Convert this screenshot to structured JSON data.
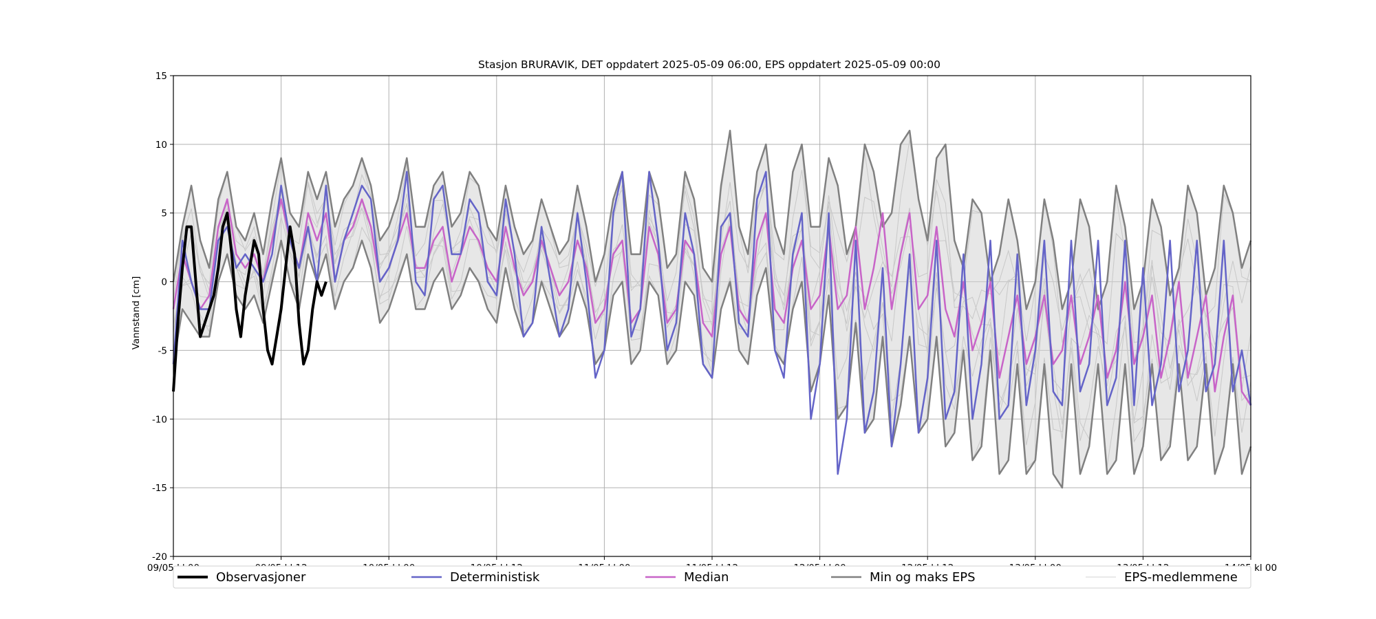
{
  "chart_data": {
    "type": "line",
    "title": "Stasjon BRURAVIK, DET oppdatert 2025-05-09 06:00, EPS oppdatert 2025-05-09 00:00",
    "ylabel": "Vannstand [cm]",
    "xlabel": "",
    "x_unit": "hours since 09/05 kl 00",
    "xlim": [
      0,
      120
    ],
    "ylim": [
      -20,
      15
    ],
    "yticks": [
      -20,
      -15,
      -10,
      -5,
      0,
      5,
      10,
      15
    ],
    "xticks": [
      {
        "x": 0,
        "label": "09/05 kl 00"
      },
      {
        "x": 12,
        "label": "09/05 kl 12"
      },
      {
        "x": 24,
        "label": "10/05 kl 00"
      },
      {
        "x": 36,
        "label": "10/05 kl 12"
      },
      {
        "x": 48,
        "label": "11/05 kl 00"
      },
      {
        "x": 60,
        "label": "11/05 kl 12"
      },
      {
        "x": 72,
        "label": "12/05 kl 00"
      },
      {
        "x": 84,
        "label": "12/05 kl 12"
      },
      {
        "x": 96,
        "label": "13/05 kl 00"
      },
      {
        "x": 108,
        "label": "13/05 kl 12"
      },
      {
        "x": 120,
        "label": "14/05 kl 00"
      }
    ],
    "grid": true,
    "legend_position": "bottom",
    "series": [
      {
        "name": "Observasjoner",
        "color": "#000000",
        "x": [
          0,
          0.5,
          1,
          1.5,
          2,
          2.5,
          3,
          3.5,
          4,
          4.5,
          5,
          5.5,
          6,
          6.5,
          7,
          7.5,
          8,
          8.5,
          9,
          9.5,
          10,
          10.5,
          11,
          11.5,
          12,
          12.5,
          13,
          13.5,
          14,
          14.5,
          15,
          15.5,
          16,
          16.5,
          17
        ],
        "y": [
          -8,
          -3,
          1,
          4,
          4,
          0,
          -4,
          -3,
          -2,
          -1,
          1,
          4,
          5,
          2,
          -2,
          -4,
          -1,
          1,
          3,
          2,
          -2,
          -5,
          -6,
          -4,
          -2,
          1,
          4,
          2,
          -3,
          -6,
          -5,
          -2,
          0,
          -1,
          0
        ]
      },
      {
        "name": "Deterministisk",
        "color": "#6464c8",
        "x": [
          0,
          1,
          2,
          3,
          4,
          5,
          6,
          7,
          8,
          9,
          10,
          11,
          12,
          13,
          14,
          15,
          16,
          17,
          18,
          19,
          20,
          21,
          22,
          23,
          24,
          25,
          26,
          27,
          28,
          29,
          30,
          31,
          32,
          33,
          34,
          35,
          36,
          37,
          38,
          39,
          40,
          41,
          42,
          43,
          44,
          45,
          46,
          47,
          48,
          49,
          50,
          51,
          52,
          53,
          54,
          55,
          56,
          57,
          58,
          59,
          60,
          61,
          62,
          63,
          64,
          65,
          66,
          67,
          68,
          69,
          70,
          71,
          72,
          73,
          74,
          75,
          76,
          77,
          78,
          79,
          80,
          81,
          82,
          83,
          84,
          85,
          86,
          87,
          88,
          89,
          90,
          91,
          92,
          93,
          94,
          95,
          96,
          97,
          98,
          99,
          100,
          101,
          102,
          103,
          104,
          105,
          106,
          107,
          108,
          109,
          110,
          111,
          112,
          113,
          114,
          115,
          116,
          117,
          118,
          119,
          120
        ],
        "y": [
          -6,
          3,
          0,
          -2,
          -2,
          3,
          4,
          1,
          2,
          1,
          0,
          2,
          7,
          3,
          1,
          4,
          0,
          7,
          0,
          3,
          5,
          7,
          6,
          0,
          1,
          3,
          8,
          0,
          -1,
          6,
          7,
          2,
          2,
          6,
          5,
          0,
          -1,
          6,
          2,
          -4,
          -3,
          4,
          0,
          -4,
          -2,
          5,
          0,
          -7,
          -5,
          5,
          8,
          -4,
          -2,
          8,
          3,
          -5,
          -3,
          5,
          2,
          -6,
          -7,
          4,
          5,
          -3,
          -4,
          6,
          8,
          -5,
          -7,
          2,
          5,
          -10,
          -6,
          5,
          -14,
          -10,
          3,
          -11,
          -8,
          1,
          -12,
          -6,
          2,
          -11,
          -7,
          3,
          -10,
          -8,
          2,
          -10,
          -6,
          3,
          -10,
          -9,
          2,
          -9,
          -5,
          3,
          -8,
          -9,
          3,
          -8,
          -6,
          3,
          -9,
          -7,
          3,
          -9,
          1,
          -9,
          -6,
          3,
          -8,
          -5,
          3,
          -8,
          -6,
          3,
          -8,
          -5,
          -9
        ]
      },
      {
        "name": "Median",
        "color": "#c864c8",
        "x": [
          0,
          1,
          2,
          3,
          4,
          5,
          6,
          7,
          8,
          9,
          10,
          11,
          12,
          13,
          14,
          15,
          16,
          17,
          18,
          19,
          20,
          21,
          22,
          23,
          24,
          25,
          26,
          27,
          28,
          29,
          30,
          31,
          32,
          33,
          34,
          35,
          36,
          37,
          38,
          39,
          40,
          41,
          42,
          43,
          44,
          45,
          46,
          47,
          48,
          49,
          50,
          51,
          52,
          53,
          54,
          55,
          56,
          57,
          58,
          59,
          60,
          61,
          62,
          63,
          64,
          65,
          66,
          67,
          68,
          69,
          70,
          71,
          72,
          73,
          74,
          75,
          76,
          77,
          78,
          79,
          80,
          81,
          82,
          83,
          84,
          85,
          86,
          87,
          88,
          89,
          90,
          91,
          92,
          93,
          94,
          95,
          96,
          97,
          98,
          99,
          100,
          101,
          102,
          103,
          104,
          105,
          106,
          107,
          108,
          109,
          110,
          111,
          112,
          113,
          114,
          115,
          116,
          117,
          118,
          119,
          120
        ],
        "y": [
          -2,
          2,
          0,
          -2,
          -1,
          4,
          6,
          2,
          1,
          2,
          0,
          3,
          6,
          3,
          1,
          5,
          3,
          5,
          0,
          3,
          4,
          6,
          4,
          0,
          1,
          3,
          5,
          1,
          1,
          3,
          4,
          0,
          2,
          4,
          3,
          1,
          0,
          4,
          1,
          -1,
          0,
          3,
          1,
          -1,
          0,
          3,
          1,
          -3,
          -2,
          2,
          3,
          -3,
          -2,
          4,
          2,
          -3,
          -2,
          3,
          2,
          -3,
          -4,
          2,
          4,
          -2,
          -3,
          3,
          5,
          -2,
          -3,
          1,
          3,
          -2,
          -1,
          4,
          -2,
          -1,
          4,
          -2,
          1,
          5,
          -2,
          2,
          5,
          -2,
          -1,
          4,
          -2,
          -4,
          0,
          -5,
          -3,
          0,
          -7,
          -4,
          -1,
          -6,
          -4,
          -1,
          -6,
          -5,
          -1,
          -6,
          -4,
          -1,
          -7,
          -5,
          0,
          -6,
          -4,
          -1,
          -7,
          -4,
          0,
          -7,
          -4,
          -1,
          -8,
          -4,
          -1,
          -8,
          -9
        ]
      },
      {
        "name": "Min og maks EPS",
        "color": "#808080",
        "max_y": [
          0,
          4,
          7,
          3,
          1,
          6,
          8,
          4,
          3,
          5,
          2,
          6,
          9,
          5,
          4,
          8,
          6,
          8,
          4,
          6,
          7,
          9,
          7,
          3,
          4,
          6,
          9,
          4,
          4,
          7,
          8,
          4,
          5,
          8,
          7,
          4,
          3,
          7,
          4,
          2,
          3,
          6,
          4,
          2,
          3,
          7,
          4,
          0,
          2,
          6,
          8,
          2,
          2,
          8,
          6,
          1,
          2,
          8,
          6,
          1,
          0,
          7,
          11,
          4,
          2,
          8,
          10,
          4,
          2,
          8,
          10,
          4,
          4,
          9,
          7,
          2,
          4,
          10,
          8,
          4,
          5,
          10,
          11,
          6,
          3,
          9,
          10,
          3,
          1,
          6,
          5,
          0,
          2,
          6,
          3,
          -2,
          0,
          6,
          3,
          -2,
          0,
          6,
          4,
          -2,
          0,
          7,
          4,
          -2,
          0,
          6,
          4,
          -1,
          1,
          7,
          5,
          -1,
          1,
          7,
          5,
          1,
          3
        ],
        "min_y": [
          -6,
          -2,
          -3,
          -4,
          -4,
          0,
          2,
          -1,
          -2,
          -1,
          -3,
          0,
          3,
          0,
          -2,
          2,
          0,
          2,
          -2,
          0,
          1,
          3,
          1,
          -3,
          -2,
          0,
          2,
          -2,
          -2,
          0,
          1,
          -2,
          -1,
          1,
          0,
          -2,
          -3,
          1,
          -2,
          -4,
          -3,
          0,
          -2,
          -4,
          -3,
          0,
          -2,
          -6,
          -5,
          -1,
          0,
          -6,
          -5,
          0,
          -1,
          -6,
          -5,
          0,
          -1,
          -6,
          -7,
          -2,
          0,
          -5,
          -6,
          -1,
          1,
          -5,
          -6,
          -2,
          0,
          -8,
          -6,
          -1,
          -10,
          -9,
          -3,
          -11,
          -10,
          -4,
          -12,
          -9,
          -4,
          -11,
          -10,
          -4,
          -12,
          -11,
          -5,
          -13,
          -12,
          -5,
          -14,
          -13,
          -6,
          -14,
          -13,
          -6,
          -14,
          -15,
          -6,
          -14,
          -12,
          -6,
          -14,
          -13,
          -6,
          -14,
          -12,
          -6,
          -13,
          -12,
          -6,
          -13,
          -12,
          -6,
          -14,
          -12,
          -6,
          -14,
          -12
        ]
      },
      {
        "name": "EPS-medlemmene",
        "color": "#d3d3d3"
      }
    ]
  }
}
